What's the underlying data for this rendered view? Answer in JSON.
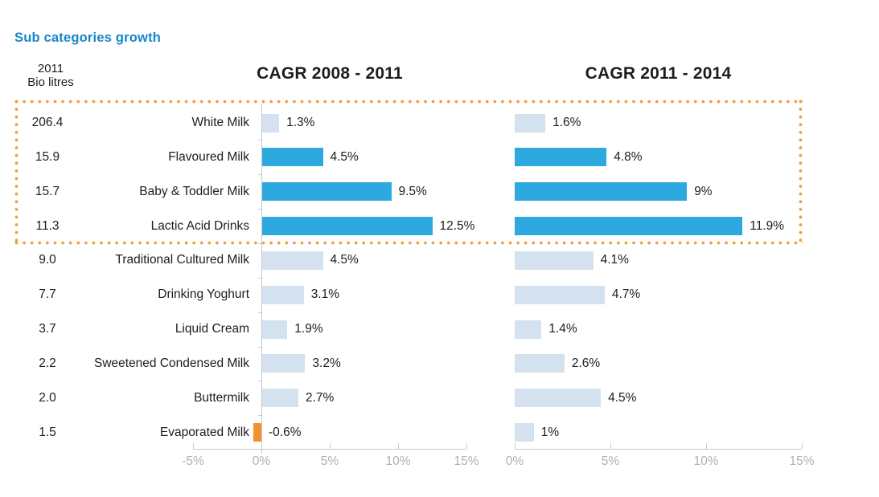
{
  "header": {
    "title": "Sub categories growth"
  },
  "volume_column": {
    "header_line1": "2011",
    "header_line2": "Bio litres"
  },
  "colors": {
    "accent_blue": "#2EA9DF",
    "muted_blue": "#D3E2EE",
    "negative_orange": "#F2912D",
    "highlight_dots_orange": "#F09E42",
    "header_blue": "#1787C8",
    "axis_line_grey": "#C6CBCE",
    "axis_text_grey": "#ACB1B5",
    "text_ink": "#1D1D1B"
  },
  "chart_data": {
    "type": "bar",
    "orientation": "horizontal",
    "title": "Sub categories growth",
    "categories": [
      "White Milk",
      "Flavoured Milk",
      "Baby & Toddler Milk",
      "Lactic Acid Drinks",
      "Traditional Cultured Milk",
      "Drinking Yoghurt",
      "Liquid Cream",
      "Sweetened Condensed Milk",
      "Buttermilk",
      "Evaporated Milk"
    ],
    "volume_column_header": "2011 Bio litres",
    "volumes_2011_bio_litres": [
      "206.4",
      "15.9",
      "15.7",
      "11.3",
      "9.0",
      "7.7",
      "3.7",
      "2.2",
      "2.0",
      "1.5"
    ],
    "highlight_box": {
      "style": "orange dotted rectangle",
      "categories": [
        "White Milk",
        "Flavoured Milk",
        "Baby & Toddler Milk",
        "Lactic Acid Drinks"
      ]
    },
    "series": [
      {
        "name": "CAGR 2008 - 2011",
        "values": [
          1.3,
          4.5,
          9.5,
          12.5,
          4.5,
          3.1,
          1.9,
          3.2,
          2.7,
          -0.6
        ],
        "labels": [
          "1.3%",
          "4.5%",
          "9.5%",
          "12.5%",
          "4.5%",
          "3.1%",
          "1.9%",
          "3.2%",
          "2.7%",
          "-0.6%"
        ],
        "bar_styles": [
          "muted",
          "accent",
          "accent",
          "accent",
          "muted",
          "muted",
          "muted",
          "muted",
          "muted",
          "negative"
        ],
        "xlim": [
          -5,
          15
        ],
        "axis_tick_values": [
          -5,
          0,
          5,
          10,
          15
        ],
        "axis_tick_labels": [
          "-5%",
          "0%",
          "5%",
          "10%",
          "15%"
        ]
      },
      {
        "name": "CAGR 2011 - 2014",
        "values": [
          1.6,
          4.8,
          9,
          11.9,
          4.1,
          4.7,
          1.4,
          2.6,
          4.5,
          1
        ],
        "labels": [
          "1.6%",
          "4.8%",
          "9%",
          "11.9%",
          "4.1%",
          "4.7%",
          "1.4%",
          "2.6%",
          "4.5%",
          "1%"
        ],
        "bar_styles": [
          "muted",
          "accent",
          "accent",
          "accent",
          "muted",
          "muted",
          "muted",
          "muted",
          "muted",
          "muted"
        ],
        "xlim": [
          0,
          15
        ],
        "axis_tick_values": [
          0,
          5,
          10,
          15
        ],
        "axis_tick_labels": [
          "0%",
          "5%",
          "10%",
          "15%"
        ]
      }
    ],
    "grid": false,
    "legend": false
  }
}
